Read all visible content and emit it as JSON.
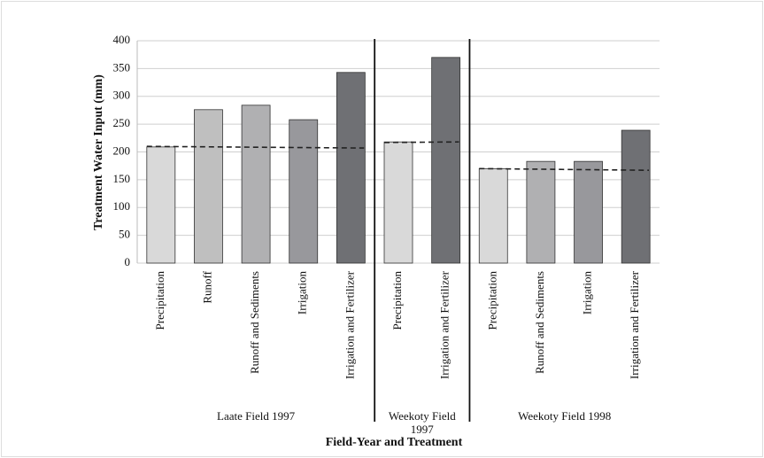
{
  "chart_data": {
    "type": "bar",
    "y_label": "Treatment Water Input (mm)",
    "x_label": "Field-Year and Treatment",
    "ylim": [
      0,
      400
    ],
    "yticks": [
      0,
      50,
      100,
      150,
      200,
      250,
      300,
      350,
      400
    ],
    "grid": true,
    "groups": [
      {
        "name": "Laate Field 1997",
        "categories": [
          "Precipitation",
          "Runoff",
          "Runoff and Sediments",
          "Irrigation",
          "Irrigation and Fertilizer"
        ],
        "values": [
          209,
          276,
          284,
          258,
          343
        ],
        "colors": [
          "#d9d9d9",
          "#bfbfbf",
          "#b0b0b2",
          "#98989c",
          "#6f7074"
        ],
        "reference": [
          210,
          207
        ]
      },
      {
        "name": "Weekoty Field 1997",
        "categories": [
          "Precipitation",
          "Irrigation and Fertilizer"
        ],
        "values": [
          218,
          370
        ],
        "colors": [
          "#d9d9d9",
          "#6f7074"
        ],
        "reference": [
          217,
          218
        ]
      },
      {
        "name": "Weekoty Field 1998",
        "categories": [
          "Precipitation",
          "Runoff and Sediments",
          "Irrigation",
          "Irrigation and Fertilizer"
        ],
        "values": [
          170,
          183,
          183,
          239
        ],
        "colors": [
          "#d9d9d9",
          "#b0b0b2",
          "#98989c",
          "#6f7074"
        ],
        "reference": [
          170,
          167
        ]
      }
    ]
  }
}
